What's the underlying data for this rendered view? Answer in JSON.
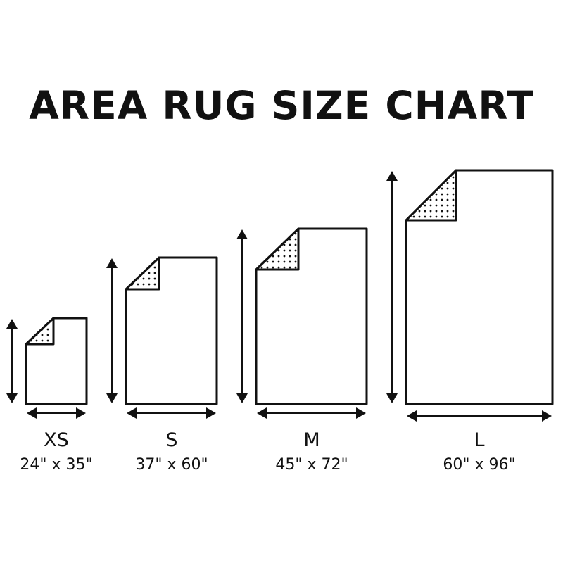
{
  "title": "AREA RUG SIZE CHART",
  "colors": {
    "line": "#111111",
    "background": "#ffffff"
  },
  "rugs": [
    {
      "size": "XS",
      "dimensions": "24\" x 35\"",
      "width_in": 24,
      "length_in": 35
    },
    {
      "size": "S",
      "dimensions": "37\" x 60\"",
      "width_in": 37,
      "length_in": 60
    },
    {
      "size": "M",
      "dimensions": "45\" x 72\"",
      "width_in": 45,
      "length_in": 72
    },
    {
      "size": "L",
      "dimensions": "60\" x 96\"",
      "width_in": 60,
      "length_in": 96
    }
  ]
}
